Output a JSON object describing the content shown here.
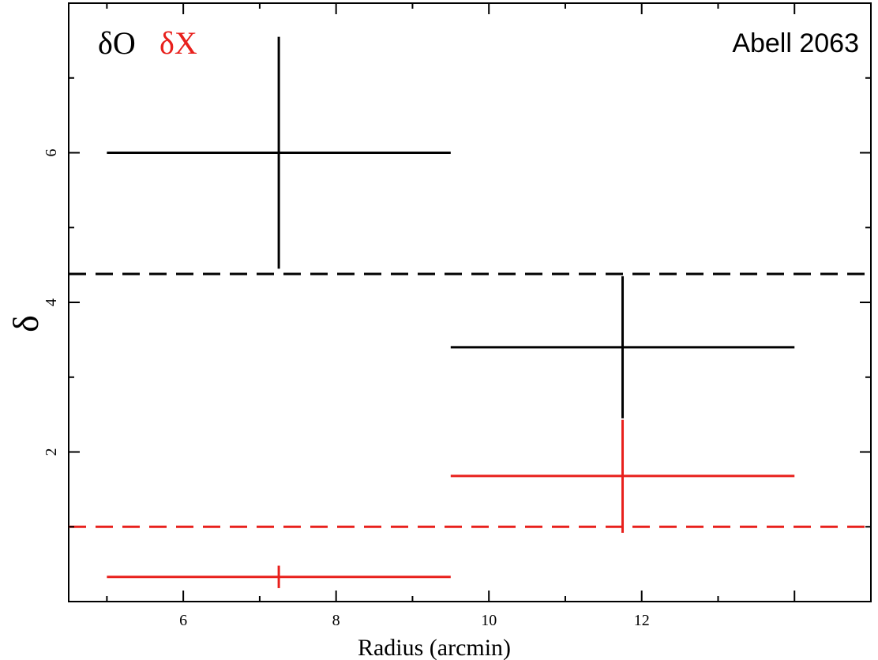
{
  "chart_data": {
    "type": "scatter",
    "title": "",
    "annotation": "Abell 2063",
    "xlabel": "Radius (arcmin)",
    "ylabel": "δ",
    "xlim": [
      4.5,
      15.0
    ],
    "ylim": [
      0.0,
      8.0
    ],
    "xticks": [
      6,
      8,
      10,
      12
    ],
    "yticks": [
      2,
      4,
      6
    ],
    "grid": false,
    "legend": {
      "placement": "top-left",
      "entries": [
        {
          "label": "δO",
          "series": "delta_O",
          "color": "#000000"
        },
        {
          "label": "δX",
          "series": "delta_X",
          "color": "#e8201c"
        }
      ]
    },
    "series": [
      {
        "id": "delta_O",
        "color": "#000000",
        "points": [
          {
            "x": 7.25,
            "xerr_lo": 5.0,
            "xerr_hi": 9.5,
            "y": 6.0,
            "yerr_lo": 4.45,
            "yerr_hi": 7.55
          },
          {
            "x": 11.75,
            "xerr_lo": 9.5,
            "xerr_hi": 14.0,
            "y": 3.4,
            "yerr_lo": 2.45,
            "yerr_hi": 4.35
          }
        ],
        "reference_line": 4.38
      },
      {
        "id": "delta_X",
        "color": "#e8201c",
        "points": [
          {
            "x": 7.25,
            "xerr_lo": 5.0,
            "xerr_hi": 9.5,
            "y": 0.33,
            "yerr_lo": 0.18,
            "yerr_hi": 0.48
          },
          {
            "x": 11.75,
            "xerr_lo": 9.5,
            "xerr_hi": 14.0,
            "y": 1.68,
            "yerr_lo": 0.92,
            "yerr_hi": 2.43
          }
        ],
        "reference_line": 1.0
      }
    ]
  }
}
